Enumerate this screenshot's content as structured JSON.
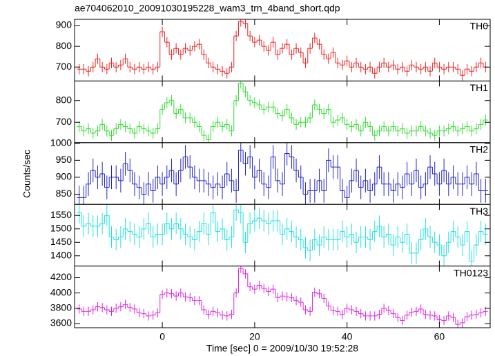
{
  "chart_data": {
    "type": "step",
    "title": "ae704062010_20091030195228_wam3_trn_4band_short.qdp",
    "xlabel": "Time [sec] 0 = 2009/10/30 19:52:28",
    "ylabel": "Counts/sec",
    "x": [
      -18,
      -17,
      -16,
      -15,
      -14,
      -13,
      -12,
      -11,
      -10,
      -9,
      -8,
      -7,
      -6,
      -5,
      -4,
      -3,
      -2,
      -1,
      0,
      1,
      2,
      3,
      4,
      5,
      6,
      7,
      8,
      9,
      10,
      11,
      12,
      13,
      14,
      15,
      16,
      17,
      18,
      19,
      20,
      21,
      22,
      23,
      24,
      25,
      26,
      27,
      28,
      29,
      30,
      31,
      32,
      33,
      34,
      35,
      36,
      37,
      38,
      39,
      40,
      41,
      42,
      43,
      44,
      45,
      46,
      47,
      48,
      49,
      50,
      51,
      52,
      53,
      54,
      55,
      56,
      57,
      58,
      59,
      60,
      61,
      62,
      63,
      64,
      65,
      66,
      67,
      68,
      69,
      70
    ],
    "xlim": [
      -19,
      71
    ],
    "xticks": [
      0,
      20,
      40,
      60
    ],
    "panels": [
      {
        "name": "TH0",
        "color": "#ee2222",
        "ylim": [
          633,
          930
        ],
        "yticks": [
          700,
          800,
          900
        ],
        "error": 25,
        "values": [
          690,
          690,
          680,
          700,
          740,
          700,
          690,
          720,
          700,
          710,
          740,
          700,
          690,
          700,
          690,
          700,
          690,
          700,
          870,
          820,
          760,
          790,
          760,
          790,
          780,
          800,
          810,
          760,
          720,
          700,
          690,
          680,
          670,
          700,
          850,
          920,
          910,
          850,
          820,
          830,
          800,
          780,
          820,
          760,
          790,
          810,
          760,
          790,
          770,
          720,
          790,
          840,
          810,
          760,
          740,
          770,
          720,
          710,
          730,
          700,
          720,
          700,
          690,
          700,
          670,
          700,
          720,
          700,
          710,
          690,
          700,
          680,
          710,
          700,
          690,
          700,
          680,
          720,
          700,
          690,
          700,
          700,
          690,
          660,
          690,
          680,
          700,
          720,
          700
        ]
      },
      {
        "name": "TH1",
        "color": "#33dd33",
        "ylim": [
          606,
          890
        ],
        "yticks": [
          700,
          800
        ],
        "error": 25,
        "values": [
          680,
          660,
          670,
          650,
          660,
          690,
          660,
          640,
          670,
          690,
          680,
          670,
          650,
          680,
          670,
          660,
          650,
          670,
          760,
          790,
          800,
          740,
          760,
          720,
          720,
          700,
          680,
          640,
          620,
          680,
          700,
          680,
          690,
          660,
          800,
          880,
          840,
          800,
          790,
          780,
          760,
          770,
          770,
          740,
          730,
          760,
          720,
          690,
          700,
          700,
          720,
          780,
          760,
          740,
          760,
          700,
          710,
          720,
          690,
          680,
          690,
          660,
          700,
          680,
          640,
          660,
          680,
          660,
          680,
          660,
          670,
          650,
          660,
          660,
          680,
          660,
          650,
          640,
          660,
          660,
          670,
          680,
          660,
          670,
          680,
          660,
          670,
          690,
          710
        ]
      },
      {
        "name": "TH2",
        "color": "#2222cc",
        "ylim": [
          820,
          1002
        ],
        "yticks": [
          850,
          900,
          950,
          1000
        ],
        "error": 35,
        "values": [
          840,
          840,
          880,
          920,
          900,
          910,
          870,
          900,
          900,
          890,
          940,
          920,
          880,
          870,
          850,
          880,
          860,
          900,
          880,
          900,
          920,
          880,
          920,
          960,
          930,
          900,
          890,
          890,
          880,
          870,
          880,
          870,
          910,
          890,
          860,
          980,
          940,
          960,
          900,
          920,
          880,
          870,
          960,
          890,
          880,
          970,
          960,
          920,
          900,
          850,
          860,
          860,
          890,
          860,
          950,
          930,
          930,
          860,
          840,
          890,
          920,
          870,
          890,
          860,
          880,
          930,
          880,
          880,
          860,
          880,
          870,
          910,
          880,
          920,
          870,
          880,
          930,
          910,
          880,
          920,
          880,
          900,
          880,
          880,
          900,
          880,
          910,
          860,
          860
        ]
      },
      {
        "name": "TH3",
        "color": "#22e0e0",
        "ylim": [
          1362,
          1591
        ],
        "yticks": [
          1400,
          1450,
          1500,
          1550
        ],
        "error": 40,
        "values": [
          1560,
          1510,
          1520,
          1510,
          1510,
          1520,
          1550,
          1470,
          1460,
          1470,
          1500,
          1490,
          1480,
          1470,
          1500,
          1520,
          1470,
          1480,
          1480,
          1520,
          1500,
          1520,
          1500,
          1480,
          1470,
          1460,
          1490,
          1520,
          1480,
          1560,
          1490,
          1500,
          1460,
          1470,
          1570,
          1560,
          1450,
          1520,
          1530,
          1540,
          1530,
          1520,
          1530,
          1530,
          1480,
          1500,
          1490,
          1470,
          1460,
          1430,
          1420,
          1460,
          1440,
          1470,
          1460,
          1460,
          1460,
          1490,
          1470,
          1480,
          1450,
          1470,
          1470,
          1460,
          1490,
          1510,
          1470,
          1480,
          1440,
          1470,
          1450,
          1480,
          1410,
          1410,
          1460,
          1500,
          1470,
          1450,
          1440,
          1400,
          1450,
          1490,
          1470,
          1440,
          1490,
          1380,
          1440,
          1490,
          1480
        ]
      },
      {
        "name": "TH0123",
        "color": "#e022e0",
        "ylim": [
          3546,
          4352
        ],
        "yticks": [
          3600,
          3800,
          4000,
          4200
        ],
        "error": 60,
        "values": [
          3790,
          3760,
          3760,
          3780,
          3820,
          3810,
          3780,
          3760,
          3800,
          3820,
          3850,
          3810,
          3790,
          3740,
          3730,
          3700,
          3710,
          3740,
          3980,
          4000,
          3990,
          3960,
          4000,
          3950,
          3940,
          3900,
          3900,
          3780,
          3720,
          3760,
          3740,
          3710,
          3700,
          3720,
          4000,
          4320,
          4250,
          4080,
          4050,
          4100,
          4060,
          4020,
          4050,
          3940,
          3960,
          3950,
          3940,
          3900,
          3880,
          3780,
          3760,
          4010,
          3990,
          3930,
          3830,
          3770,
          3760,
          3720,
          3800,
          3780,
          3760,
          3730,
          3700,
          3700,
          3700,
          3720,
          3800,
          3770,
          3730,
          3680,
          3640,
          3710,
          3750,
          3760,
          3790,
          3720,
          3710,
          3700,
          3650,
          3640,
          3700,
          3680,
          3590,
          3610,
          3690,
          3710,
          3720,
          3740,
          3760
        ]
      }
    ]
  }
}
